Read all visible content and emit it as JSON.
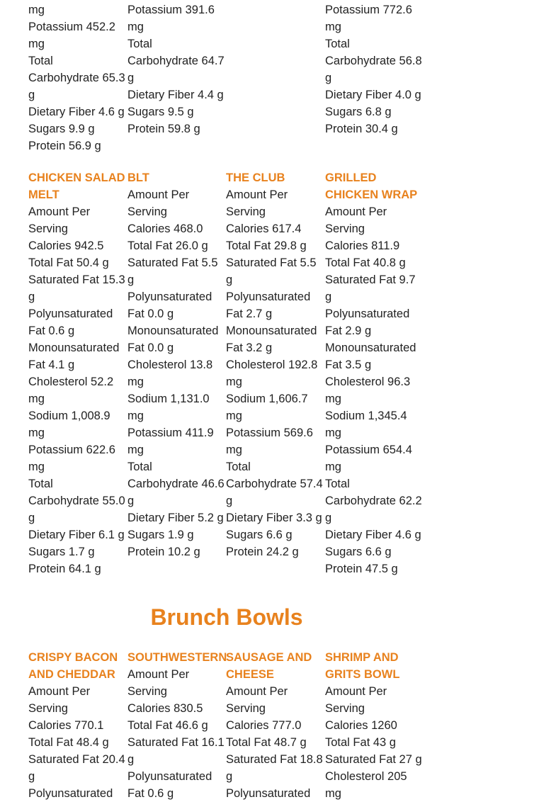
{
  "top_fragment": {
    "columns": [
      {
        "items": [
          "mg",
          "Potassium 452.2 mg",
          "Total Carbohydrate 65.3 g",
          "Dietary Fiber 4.6 g",
          "Sugars 9.9 g",
          "Protein 56.9 g"
        ]
      },
      {
        "items": [
          "Potassium 391.6 mg",
          "Total Carbohydrate 64.7 g",
          "Dietary Fiber 4.4 g",
          "Sugars 9.5 g",
          "Protein 59.8 g"
        ]
      },
      {
        "items": []
      },
      {
        "items": [
          "Potassium 772.6 mg",
          "Total Carbohydrate 56.8 g",
          "Dietary Fiber 4.0 g",
          "Sugars 6.8 g",
          "Protein 30.4 g"
        ]
      }
    ]
  },
  "sandwiches": {
    "columns": [
      {
        "title": "CHICKEN SALAD MELT",
        "items": [
          "Amount Per Serving",
          "Calories 942.5",
          "Total Fat 50.4 g",
          "Saturated Fat 15.3 g",
          "Polyunsaturated Fat 0.6 g",
          "Monounsaturated Fat 4.1 g",
          "Cholesterol 52.2 mg",
          "Sodium 1,008.9 mg",
          "Potassium 622.6 mg",
          "Total Carbohydrate 55.0 g",
          "Dietary Fiber 6.1 g",
          "Sugars 1.7 g",
          "Protein 64.1 g"
        ]
      },
      {
        "title": "BLT",
        "items": [
          "Amount Per Serving",
          "Calories 468.0",
          "Total Fat 26.0 g",
          "Saturated Fat 5.5 g",
          "Polyunsaturated Fat 0.0 g",
          "Monounsaturated Fat 0.0 g",
          "Cholesterol 13.8 mg",
          "Sodium 1,131.0 mg",
          "Potassium 411.9 mg",
          "Total Carbohydrate 46.6 g",
          "Dietary Fiber 5.2 g",
          "Sugars 1.9 g",
          "Protein 10.2 g"
        ]
      },
      {
        "title": "THE CLUB",
        "items": [
          "Amount Per Serving",
          "Calories 617.4",
          "Total Fat 29.8 g",
          "Saturated Fat 5.5 g",
          "Polyunsaturated Fat 2.7 g",
          "Monounsaturated Fat 3.2 g",
          "Cholesterol 192.8 mg",
          "Sodium 1,606.7 mg",
          "Potassium 569.6 mg",
          "Total Carbohydrate 57.4 g",
          "Dietary Fiber 3.3 g",
          "Sugars 6.6 g",
          "Protein 24.2 g"
        ]
      },
      {
        "title": "GRILLED CHICKEN WRAP",
        "items": [
          "Amount Per Serving",
          "Calories 811.9",
          "Total Fat 40.8 g",
          "Saturated Fat 9.7 g",
          "Polyunsaturated Fat 2.9 g",
          "Monounsaturated Fat 3.5 g",
          "Cholesterol 96.3 mg",
          "Sodium 1,345.4 mg",
          "Potassium 654.4 mg",
          "Total Carbohydrate 62.2 g",
          "Dietary Fiber 4.6 g",
          "Sugars 6.6 g",
          "Protein 47.5 g"
        ]
      }
    ]
  },
  "brunch_bowls": {
    "heading": "Brunch Bowls",
    "columns": [
      {
        "title": "CRISPY BACON AND CHEDDAR",
        "items": [
          "Amount Per Serving",
          "Calories 770.1",
          "Total Fat 48.4 g",
          "Saturated Fat 20.4 g",
          "Polyunsaturated"
        ]
      },
      {
        "title": "SOUTHWESTERN",
        "items": [
          "Amount Per Serving",
          "Calories 830.5",
          "Total Fat 46.6 g",
          "Saturated Fat 16.1 g",
          "Polyunsaturated Fat 0.6 g"
        ]
      },
      {
        "title": "SAUSAGE AND CHEESE",
        "items": [
          "Amount Per Serving",
          "Calories 777.0",
          "Total Fat 48.7 g",
          "Saturated Fat 18.8 g",
          "Polyunsaturated"
        ]
      },
      {
        "title": "SHRIMP AND GRITS BOWL",
        "items": [
          "Amount Per Serving",
          "Calories 1260",
          "Total Fat 43 g",
          "Saturated Fat 27 g",
          "Cholesterol 205 mg"
        ]
      }
    ]
  }
}
